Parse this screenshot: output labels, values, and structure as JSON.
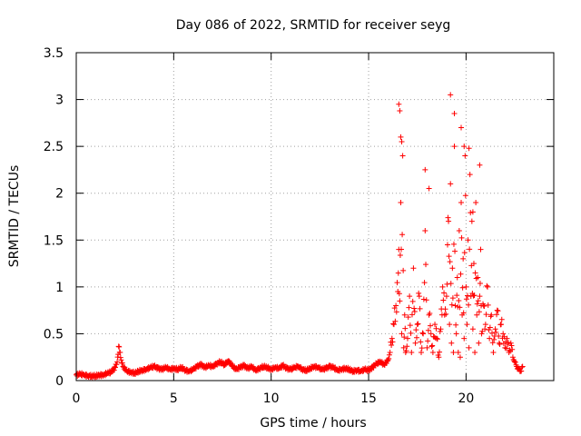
{
  "chart_data": {
    "type": "scatter",
    "title": "Day 086 of 2022, SRMTID for receiver seyg",
    "xlabel": "GPS time / hours",
    "ylabel": "SRMTID / TECUs",
    "xlim": [
      0,
      24.5
    ],
    "ylim": [
      0,
      3.5
    ],
    "xticks": [
      0,
      5,
      10,
      15,
      20
    ],
    "xtick_labels": [
      "0",
      "5",
      "10",
      "15",
      "20"
    ],
    "yticks": [
      0,
      0.5,
      1,
      1.5,
      2,
      2.5,
      3,
      3.5
    ],
    "ytick_labels": [
      "0",
      "0.5",
      "1",
      "1.5",
      "2",
      "2.5",
      "3",
      "3.5"
    ],
    "grid": true,
    "marker": "plus",
    "color": "#ff0000",
    "series": [
      {
        "name": "SRMTID",
        "points": [
          [
            0.0,
            0.06
          ],
          [
            0.2,
            0.07
          ],
          [
            0.4,
            0.06
          ],
          [
            0.6,
            0.05
          ],
          [
            0.8,
            0.05
          ],
          [
            1.0,
            0.05
          ],
          [
            1.2,
            0.06
          ],
          [
            1.4,
            0.06
          ],
          [
            1.6,
            0.08
          ],
          [
            1.8,
            0.09
          ],
          [
            2.0,
            0.14
          ],
          [
            2.1,
            0.2
          ],
          [
            2.15,
            0.28
          ],
          [
            2.2,
            0.36
          ],
          [
            2.25,
            0.3
          ],
          [
            2.3,
            0.22
          ],
          [
            2.4,
            0.15
          ],
          [
            2.6,
            0.1
          ],
          [
            2.8,
            0.09
          ],
          [
            3.0,
            0.08
          ],
          [
            3.2,
            0.1
          ],
          [
            3.4,
            0.11
          ],
          [
            3.6,
            0.12
          ],
          [
            3.8,
            0.14
          ],
          [
            4.0,
            0.15
          ],
          [
            4.2,
            0.13
          ],
          [
            4.4,
            0.12
          ],
          [
            4.6,
            0.14
          ],
          [
            4.8,
            0.12
          ],
          [
            5.0,
            0.13
          ],
          [
            5.2,
            0.12
          ],
          [
            5.4,
            0.14
          ],
          [
            5.6,
            0.11
          ],
          [
            5.8,
            0.1
          ],
          [
            6.0,
            0.12
          ],
          [
            6.2,
            0.15
          ],
          [
            6.4,
            0.17
          ],
          [
            6.6,
            0.14
          ],
          [
            6.8,
            0.16
          ],
          [
            7.0,
            0.15
          ],
          [
            7.2,
            0.18
          ],
          [
            7.4,
            0.2
          ],
          [
            7.6,
            0.17
          ],
          [
            7.8,
            0.21
          ],
          [
            8.0,
            0.16
          ],
          [
            8.2,
            0.12
          ],
          [
            8.4,
            0.14
          ],
          [
            8.6,
            0.16
          ],
          [
            8.8,
            0.13
          ],
          [
            9.0,
            0.15
          ],
          [
            9.2,
            0.11
          ],
          [
            9.4,
            0.13
          ],
          [
            9.6,
            0.15
          ],
          [
            9.8,
            0.14
          ],
          [
            10.0,
            0.12
          ],
          [
            10.2,
            0.14
          ],
          [
            10.4,
            0.13
          ],
          [
            10.6,
            0.16
          ],
          [
            10.8,
            0.13
          ],
          [
            11.0,
            0.12
          ],
          [
            11.2,
            0.14
          ],
          [
            11.4,
            0.15
          ],
          [
            11.6,
            0.12
          ],
          [
            11.8,
            0.11
          ],
          [
            12.0,
            0.13
          ],
          [
            12.2,
            0.15
          ],
          [
            12.4,
            0.14
          ],
          [
            12.6,
            0.12
          ],
          [
            12.8,
            0.13
          ],
          [
            13.0,
            0.15
          ],
          [
            13.2,
            0.14
          ],
          [
            13.4,
            0.11
          ],
          [
            13.6,
            0.12
          ],
          [
            13.8,
            0.13
          ],
          [
            14.0,
            0.12
          ],
          [
            14.2,
            0.1
          ],
          [
            14.4,
            0.11
          ],
          [
            14.6,
            0.1
          ],
          [
            14.8,
            0.12
          ],
          [
            15.0,
            0.11
          ],
          [
            15.2,
            0.14
          ],
          [
            15.4,
            0.18
          ],
          [
            15.6,
            0.2
          ],
          [
            15.8,
            0.17
          ],
          [
            16.0,
            0.22
          ],
          [
            16.1,
            0.3
          ],
          [
            16.2,
            0.45
          ],
          [
            16.3,
            0.6
          ],
          [
            16.4,
            0.8
          ],
          [
            16.5,
            0.95
          ],
          [
            16.55,
            1.4
          ],
          [
            16.6,
            0.85
          ],
          [
            16.65,
            1.9
          ],
          [
            16.7,
            0.5
          ],
          [
            16.75,
            2.4
          ],
          [
            16.8,
            0.35
          ],
          [
            16.85,
            0.7
          ],
          [
            16.9,
            0.3
          ],
          [
            17.0,
            0.45
          ],
          [
            17.1,
            0.9
          ],
          [
            17.2,
            0.3
          ],
          [
            17.3,
            1.2
          ],
          [
            17.4,
            0.4
          ],
          [
            17.5,
            0.6
          ],
          [
            17.6,
            0.9
          ],
          [
            17.7,
            0.3
          ],
          [
            17.8,
            0.5
          ],
          [
            17.9,
            1.6
          ],
          [
            18.0,
            0.35
          ],
          [
            18.1,
            0.7
          ],
          [
            18.2,
            0.5
          ],
          [
            18.3,
            0.3
          ],
          [
            18.4,
            0.6
          ],
          [
            18.5,
            0.45
          ],
          [
            18.6,
            0.25
          ],
          [
            18.7,
            0.55
          ],
          [
            18.8,
            1.0
          ],
          [
            18.9,
            0.7
          ],
          [
            19.0,
            0.9
          ],
          [
            19.05,
            1.45
          ],
          [
            19.1,
            1.7
          ],
          [
            19.15,
            0.6
          ],
          [
            19.2,
            2.1
          ],
          [
            19.25,
            0.4
          ],
          [
            19.3,
            1.2
          ],
          [
            19.35,
            0.3
          ],
          [
            19.4,
            2.5
          ],
          [
            19.45,
            0.8
          ],
          [
            19.5,
            0.5
          ],
          [
            19.55,
            1.1
          ],
          [
            19.6,
            0.3
          ],
          [
            19.65,
            1.6
          ],
          [
            19.7,
            0.25
          ],
          [
            19.75,
            1.9
          ],
          [
            19.8,
            0.7
          ],
          [
            19.85,
            1.3
          ],
          [
            19.9,
            0.45
          ],
          [
            19.95,
            2.4
          ],
          [
            20.0,
            1.0
          ],
          [
            20.05,
            0.6
          ],
          [
            20.1,
            1.5
          ],
          [
            20.15,
            0.35
          ],
          [
            20.2,
            2.2
          ],
          [
            20.25,
            0.9
          ],
          [
            20.3,
            1.7
          ],
          [
            20.35,
            0.55
          ],
          [
            20.4,
            1.25
          ],
          [
            20.45,
            0.3
          ],
          [
            20.5,
            1.9
          ],
          [
            20.55,
            0.7
          ],
          [
            20.6,
            1.1
          ],
          [
            20.65,
            0.4
          ],
          [
            20.7,
            0.9
          ],
          [
            20.75,
            1.4
          ],
          [
            20.8,
            0.5
          ],
          [
            20.9,
            0.8
          ],
          [
            21.0,
            0.6
          ],
          [
            21.1,
            1.0
          ],
          [
            21.2,
            0.45
          ],
          [
            21.3,
            0.7
          ],
          [
            21.4,
            0.3
          ],
          [
            21.5,
            0.55
          ],
          [
            21.6,
            0.75
          ],
          [
            21.7,
            0.4
          ],
          [
            21.8,
            0.6
          ],
          [
            21.9,
            0.5
          ],
          [
            22.0,
            0.35
          ],
          [
            22.1,
            0.45
          ],
          [
            22.2,
            0.3
          ],
          [
            22.3,
            0.4
          ],
          [
            22.4,
            0.25
          ],
          [
            22.5,
            0.2
          ],
          [
            22.6,
            0.15
          ],
          [
            22.7,
            0.12
          ],
          [
            22.8,
            0.1
          ],
          [
            22.9,
            0.15
          ]
        ],
        "outliers": [
          [
            16.55,
            2.95
          ],
          [
            16.6,
            2.88
          ],
          [
            16.65,
            2.6
          ],
          [
            16.7,
            2.55
          ],
          [
            19.2,
            3.05
          ],
          [
            19.4,
            2.85
          ],
          [
            19.75,
            2.7
          ],
          [
            19.9,
            2.5
          ],
          [
            20.15,
            2.48
          ],
          [
            17.9,
            2.25
          ],
          [
            20.7,
            2.3
          ],
          [
            18.1,
            2.05
          ],
          [
            20.35,
            1.8
          ]
        ]
      }
    ]
  }
}
